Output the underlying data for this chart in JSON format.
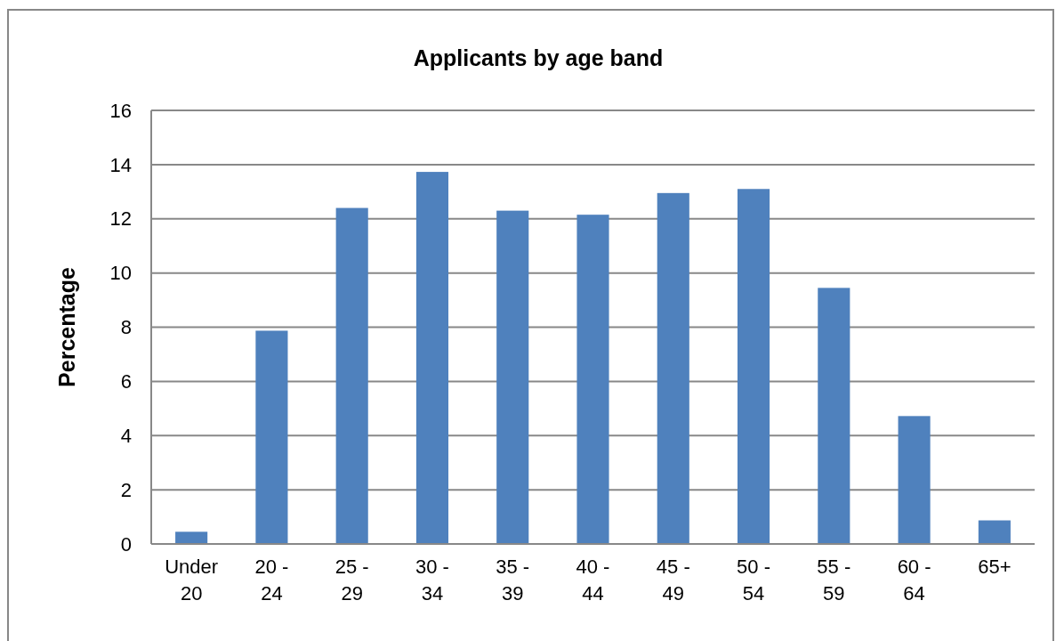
{
  "chart_data": {
    "type": "bar",
    "title": "Applicants by age band",
    "ylabel": "Percentage",
    "categories": [
      "Under 20",
      "20 - 24",
      "25 - 29",
      "30 - 34",
      "35 - 39",
      "40 - 44",
      "45 - 49",
      "50 - 54",
      "55 - 59",
      "60 - 64",
      "65+"
    ],
    "values": [
      0.45,
      7.87,
      12.4,
      13.73,
      12.3,
      12.15,
      12.95,
      13.1,
      9.45,
      4.72,
      0.87
    ],
    "color": "#4f81bd",
    "ylim": [
      0,
      16
    ],
    "yticks": [
      0,
      2,
      4,
      6,
      8,
      10,
      12,
      14,
      16
    ],
    "grid": "y"
  }
}
